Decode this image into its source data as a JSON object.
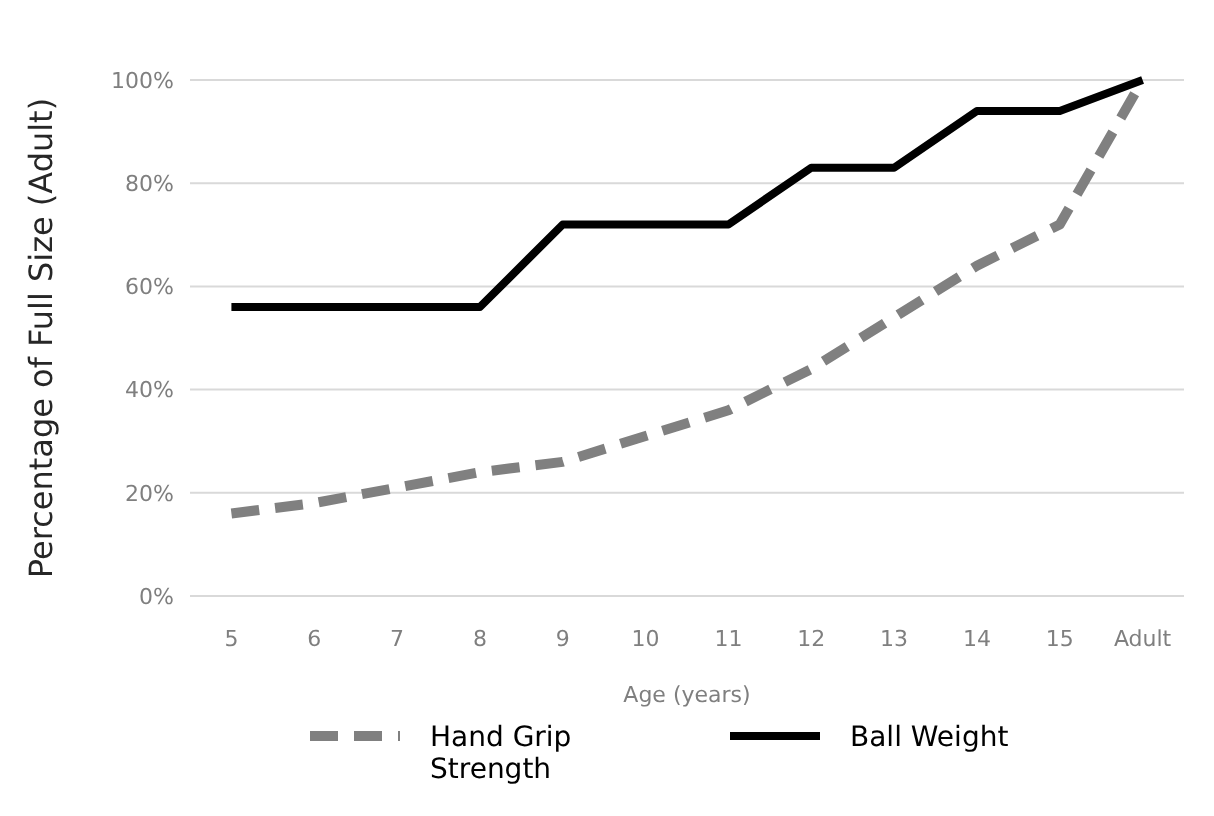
{
  "chart_data": {
    "type": "line",
    "xlabel": "Age (years)",
    "ylabel": "Percentage of Full Size (Adult)",
    "categories": [
      "5",
      "6",
      "7",
      "8",
      "9",
      "10",
      "11",
      "12",
      "13",
      "14",
      "15",
      "Adult"
    ],
    "series": [
      {
        "name": "Hand Grip Strength",
        "color": "#808080",
        "line_style": "dashed",
        "values": [
          16,
          18,
          21,
          24,
          26,
          31,
          36,
          44,
          54,
          64,
          72,
          100
        ]
      },
      {
        "name": "Ball Weight",
        "color": "#000000",
        "line_style": "solid",
        "values": [
          56,
          56,
          56,
          56,
          72,
          72,
          72,
          83,
          83,
          94,
          94,
          100
        ]
      }
    ],
    "ylim": [
      0,
      100
    ],
    "yticks": [
      {
        "value": 0,
        "label": "0%"
      },
      {
        "value": 20,
        "label": "20%"
      },
      {
        "value": 40,
        "label": "40%"
      },
      {
        "value": 60,
        "label": "60%"
      },
      {
        "value": 80,
        "label": "80%"
      },
      {
        "value": 100,
        "label": "100%"
      }
    ],
    "grid": "y",
    "legend": "bottom",
    "marker": "none"
  }
}
